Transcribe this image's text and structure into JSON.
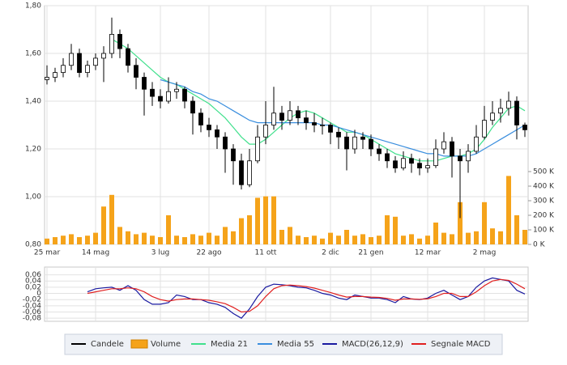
{
  "chart_data": [
    {
      "type": "candlestick",
      "name": "Candele",
      "color": "#000000",
      "legend": "bottom",
      "grid": true,
      "categories": [
        "25 mar",
        null,
        null,
        null,
        null,
        null,
        "14 mag",
        null,
        null,
        null,
        null,
        null,
        null,
        null,
        "3 lug",
        null,
        null,
        null,
        null,
        null,
        "22 ago",
        null,
        null,
        null,
        null,
        null,
        null,
        "11 ott",
        null,
        null,
        null,
        null,
        null,
        null,
        null,
        "2 dic",
        null,
        null,
        null,
        null,
        "21 gen",
        null,
        null,
        null,
        null,
        null,
        null,
        "12 mar",
        null,
        null,
        null,
        null,
        null,
        null,
        "2 mag",
        null,
        null,
        null,
        null,
        null
      ],
      "open": [
        1.49,
        1.5,
        1.52,
        1.55,
        1.6,
        1.52,
        1.55,
        1.58,
        1.6,
        1.68,
        1.62,
        1.55,
        1.5,
        1.45,
        1.42,
        1.4,
        1.44,
        1.45,
        1.4,
        1.35,
        1.3,
        1.28,
        1.25,
        1.2,
        1.15,
        1.05,
        1.15,
        1.25,
        1.3,
        1.35,
        1.32,
        1.36,
        1.33,
        1.31,
        1.3,
        1.3,
        1.27,
        1.25,
        1.2,
        1.25,
        1.24,
        1.2,
        1.18,
        1.15,
        1.12,
        1.16,
        1.14,
        1.12,
        1.13,
        1.2,
        1.23,
        1.17,
        1.15,
        1.19,
        1.25,
        1.32,
        1.35,
        1.37,
        1.4,
        1.3
      ],
      "high": [
        1.55,
        1.54,
        1.58,
        1.64,
        1.62,
        1.57,
        1.6,
        1.63,
        1.75,
        1.7,
        1.64,
        1.58,
        1.52,
        1.48,
        1.45,
        1.5,
        1.48,
        1.46,
        1.42,
        1.37,
        1.33,
        1.3,
        1.27,
        1.22,
        1.18,
        1.2,
        1.3,
        1.4,
        1.46,
        1.38,
        1.4,
        1.38,
        1.36,
        1.35,
        1.33,
        1.31,
        1.29,
        1.27,
        1.28,
        1.27,
        1.26,
        1.22,
        1.2,
        1.17,
        1.19,
        1.18,
        1.16,
        1.16,
        1.24,
        1.27,
        1.25,
        1.2,
        1.22,
        1.3,
        1.38,
        1.4,
        1.41,
        1.44,
        1.42,
        1.31
      ],
      "low": [
        1.47,
        1.48,
        1.5,
        1.53,
        1.5,
        1.5,
        1.53,
        1.48,
        1.58,
        1.58,
        1.52,
        1.45,
        1.34,
        1.38,
        1.37,
        1.39,
        1.41,
        1.37,
        1.26,
        1.27,
        1.25,
        1.2,
        1.1,
        1.05,
        1.03,
        1.04,
        1.14,
        1.22,
        1.28,
        1.28,
        1.3,
        1.3,
        1.28,
        1.27,
        1.26,
        1.22,
        1.2,
        1.11,
        1.18,
        1.2,
        1.17,
        1.15,
        1.12,
        1.1,
        1.11,
        1.1,
        1.09,
        1.1,
        1.12,
        1.18,
        1.08,
        0.91,
        1.1,
        1.18,
        1.24,
        1.3,
        1.31,
        1.34,
        1.24,
        1.25
      ],
      "close": [
        1.5,
        1.52,
        1.55,
        1.6,
        1.52,
        1.55,
        1.58,
        1.6,
        1.68,
        1.62,
        1.55,
        1.5,
        1.45,
        1.42,
        1.4,
        1.44,
        1.45,
        1.4,
        1.35,
        1.3,
        1.28,
        1.25,
        1.2,
        1.15,
        1.05,
        1.15,
        1.25,
        1.3,
        1.35,
        1.32,
        1.36,
        1.33,
        1.31,
        1.3,
        1.3,
        1.27,
        1.25,
        1.2,
        1.25,
        1.24,
        1.2,
        1.18,
        1.15,
        1.12,
        1.16,
        1.14,
        1.12,
        1.13,
        1.2,
        1.23,
        1.17,
        1.15,
        1.19,
        1.25,
        1.32,
        1.35,
        1.37,
        1.4,
        1.3,
        1.28
      ],
      "ylim": [
        0.8,
        1.8
      ],
      "yticks": [
        {
          "value": 0.8,
          "label": "0,80"
        },
        {
          "value": 1.0,
          "label": "1,00"
        },
        {
          "value": 1.2,
          "label": "1,20"
        },
        {
          "value": 1.4,
          "label": "1,40"
        },
        {
          "value": 1.6,
          "label": "1,60"
        },
        {
          "value": 1.8,
          "label": "1,80"
        }
      ],
      "y2lim": [
        0,
        500000
      ],
      "y2ticks": [
        {
          "value": 0,
          "label": "0 K"
        },
        {
          "value": 100000,
          "label": "100 K"
        },
        {
          "value": 200000,
          "label": "200 K"
        },
        {
          "value": 300000,
          "label": "300 K"
        },
        {
          "value": 400000,
          "label": "400 K"
        },
        {
          "value": 500000,
          "label": "500 K"
        }
      ],
      "series": [
        {
          "name": "Volume",
          "type": "bar",
          "axis": "y2",
          "color": "#f5a31a",
          "values": [
            40000,
            50000,
            60000,
            70000,
            50000,
            60000,
            80000,
            260000,
            340000,
            120000,
            90000,
            70000,
            80000,
            60000,
            50000,
            200000,
            60000,
            50000,
            70000,
            60000,
            80000,
            60000,
            120000,
            90000,
            180000,
            200000,
            320000,
            330000,
            330000,
            100000,
            120000,
            60000,
            50000,
            60000,
            40000,
            80000,
            60000,
            100000,
            60000,
            70000,
            50000,
            60000,
            200000,
            190000,
            60000,
            70000,
            40000,
            60000,
            150000,
            80000,
            70000,
            290000,
            80000,
            90000,
            290000,
            110000,
            90000,
            470000,
            200000,
            100000
          ]
        },
        {
          "name": "Media 21",
          "type": "line",
          "color": "#40e08c",
          "values": [
            null,
            null,
            null,
            null,
            null,
            null,
            null,
            null,
            1.66,
            1.64,
            1.62,
            1.59,
            1.56,
            1.53,
            1.5,
            1.48,
            1.47,
            1.45,
            1.43,
            1.41,
            1.39,
            1.36,
            1.33,
            1.29,
            1.25,
            1.22,
            1.22,
            1.24,
            1.27,
            1.3,
            1.33,
            1.35,
            1.36,
            1.35,
            1.33,
            1.31,
            1.29,
            1.27,
            1.27,
            1.26,
            1.24,
            1.22,
            1.2,
            1.18,
            1.17,
            1.16,
            1.15,
            1.15,
            1.15,
            1.16,
            1.17,
            1.17,
            1.18,
            1.2,
            1.24,
            1.29,
            1.33,
            1.37,
            1.38,
            1.36
          ]
        },
        {
          "name": "Media 55",
          "type": "line",
          "color": "#3a8ede",
          "values": [
            null,
            null,
            null,
            null,
            null,
            null,
            null,
            null,
            null,
            null,
            null,
            null,
            null,
            null,
            1.49,
            1.48,
            1.47,
            1.46,
            1.44,
            1.43,
            1.41,
            1.4,
            1.38,
            1.36,
            1.34,
            1.32,
            1.31,
            1.31,
            1.31,
            1.31,
            1.31,
            1.31,
            1.31,
            1.31,
            1.3,
            1.3,
            1.29,
            1.28,
            1.27,
            1.26,
            1.25,
            1.24,
            1.23,
            1.22,
            1.21,
            1.2,
            1.19,
            1.18,
            1.18,
            1.17,
            1.17,
            1.17,
            1.17,
            1.18,
            1.2,
            1.22,
            1.24,
            1.26,
            1.28,
            1.3
          ]
        }
      ]
    },
    {
      "type": "line",
      "grid": true,
      "ylim": [
        -0.09,
        0.085
      ],
      "yticks": [
        {
          "value": -0.08,
          "label": "-0,08"
        },
        {
          "value": -0.06,
          "label": "-0,06"
        },
        {
          "value": -0.04,
          "label": "-0,04"
        },
        {
          "value": -0.02,
          "label": "-0,02"
        },
        0,
        {
          "value": 0.02,
          "label": "0,02"
        },
        {
          "value": 0.04,
          "label": "0,04"
        },
        {
          "value": 0.06,
          "label": "0,06"
        }
      ],
      "series": [
        {
          "name": "MACD(26,12,9)",
          "color": "#1a1aa0",
          "values": [
            null,
            null,
            null,
            null,
            null,
            0.005,
            0.015,
            0.018,
            0.02,
            0.01,
            0.025,
            0.01,
            -0.02,
            -0.035,
            -0.035,
            -0.03,
            -0.005,
            -0.01,
            -0.02,
            -0.02,
            -0.03,
            -0.035,
            -0.045,
            -0.065,
            -0.08,
            -0.05,
            -0.01,
            0.02,
            0.03,
            0.028,
            0.025,
            0.02,
            0.018,
            0.01,
            0.0,
            -0.005,
            -0.015,
            -0.02,
            -0.005,
            -0.01,
            -0.015,
            -0.015,
            -0.02,
            -0.03,
            -0.01,
            -0.018,
            -0.02,
            -0.015,
            0.0,
            0.01,
            -0.005,
            -0.02,
            -0.01,
            0.02,
            0.04,
            0.05,
            0.045,
            0.04,
            0.01,
            -0.002
          ]
        },
        {
          "name": "Segnale MACD",
          "color": "#e02020",
          "values": [
            null,
            null,
            null,
            null,
            null,
            0.0,
            0.005,
            0.01,
            0.015,
            0.015,
            0.018,
            0.015,
            0.005,
            -0.01,
            -0.02,
            -0.025,
            -0.02,
            -0.018,
            -0.018,
            -0.02,
            -0.022,
            -0.027,
            -0.033,
            -0.045,
            -0.06,
            -0.058,
            -0.04,
            -0.01,
            0.015,
            0.025,
            0.027,
            0.025,
            0.022,
            0.017,
            0.01,
            0.003,
            -0.005,
            -0.012,
            -0.01,
            -0.01,
            -0.012,
            -0.013,
            -0.016,
            -0.022,
            -0.018,
            -0.018,
            -0.019,
            -0.017,
            -0.01,
            0.0,
            0.0,
            -0.01,
            -0.01,
            0.005,
            0.025,
            0.04,
            0.045,
            0.042,
            0.03,
            0.015
          ]
        }
      ]
    }
  ]
}
